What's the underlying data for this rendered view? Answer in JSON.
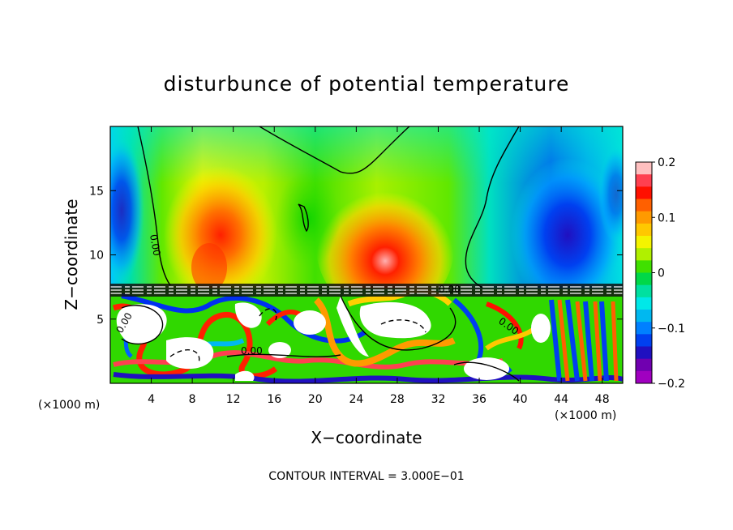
{
  "chart_data": {
    "type": "heatmap",
    "title": "disturbunce of potential temperature",
    "xlabel": "X−coordinate",
    "ylabel": "Z−coordinate",
    "x_unit": "(×1000 m)",
    "z_unit": "(×1000 m)",
    "xlim": [
      0,
      50
    ],
    "ylim": [
      0,
      20
    ],
    "x_ticks": [
      4,
      8,
      12,
      16,
      20,
      24,
      28,
      32,
      36,
      40,
      44,
      48
    ],
    "y_ticks": [
      5,
      10,
      15
    ],
    "colorbar": {
      "range": [
        -0.2,
        0.2
      ],
      "tick_values": [
        0.2,
        0.1,
        0,
        -0.1,
        -0.2
      ],
      "tick_labels": [
        "0.2",
        "0.1",
        "0",
        "−0.1",
        "−0.2"
      ],
      "colors": [
        "#ffc0c0",
        "#ff4050",
        "#ff1000",
        "#ff6000",
        "#ff9a00",
        "#ffc800",
        "#f4f400",
        "#b0f000",
        "#40e000",
        "#00d848",
        "#00e0a0",
        "#00e8e8",
        "#00b8f0",
        "#0080ff",
        "#0040f0",
        "#2010c0",
        "#7000b0",
        "#a000c0"
      ]
    },
    "contour_interval": "CONTOUR INTERVAL = 3.000E−01",
    "contour_labels": [
      "0.00",
      "0.00",
      "0.00",
      "0.00",
      "0.00"
    ],
    "interface_height": 7.2
  }
}
